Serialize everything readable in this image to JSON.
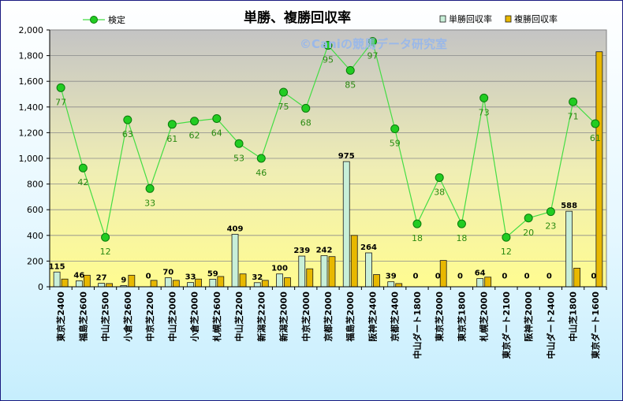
{
  "chart_data": {
    "type": "bar",
    "title": "単勝、複勝回収率",
    "watermark": "©Caniの競馬データ研究室",
    "ylim": [
      0,
      2000
    ],
    "yticks": [
      "0",
      "200",
      "400",
      "600",
      "800",
      "1,000",
      "1,200",
      "1,400",
      "1,600",
      "1,800",
      "2,000"
    ],
    "categories": [
      "東京芝2400",
      "福島芝2600",
      "中山芝2500",
      "小倉芝2600",
      "中京芝2200",
      "中山芝2000",
      "小倉芝2000",
      "札幌芝2600",
      "中山芝2200",
      "新潟芝2200",
      "新潟芝2000",
      "中京芝2000",
      "京都芝2000",
      "福島芝2000",
      "阪神芝2400",
      "京都芝2400",
      "中山ダート1800",
      "東京芝2000",
      "東京芝1800",
      "札幌芝2000",
      "東京ダート2100",
      "阪神芝2000",
      "中山ダート2400",
      "中山芝1800",
      "東京ダート1600"
    ],
    "series": [
      {
        "name": "単勝回収率",
        "color": "#c8efd8",
        "values": [
          115,
          46,
          27,
          9,
          0,
          70,
          33,
          59,
          409,
          32,
          100,
          239,
          242,
          975,
          264,
          39,
          0,
          0,
          0,
          64,
          0,
          0,
          0,
          588,
          0
        ],
        "labels": [
          "115",
          "46",
          "27",
          "9",
          "0",
          "70",
          "33",
          "59",
          "409",
          "32",
          "100",
          "239",
          "242",
          "975",
          "264",
          "39",
          "0",
          "0",
          "0",
          "64",
          "0",
          "0",
          "0",
          "588",
          "0"
        ]
      },
      {
        "name": "複勝回収率",
        "color": "#e8b800",
        "values": [
          60,
          90,
          25,
          90,
          50,
          50,
          60,
          80,
          100,
          50,
          70,
          140,
          235,
          400,
          95,
          25,
          0,
          205,
          0,
          75,
          0,
          0,
          0,
          145,
          1830
        ]
      }
    ],
    "line": {
      "name": "検定",
      "color": "#44dd44",
      "values": [
        1550,
        925,
        385,
        1300,
        765,
        1265,
        1290,
        1310,
        1115,
        1000,
        1515,
        1390,
        1880,
        1685,
        1910,
        1230,
        490,
        850,
        490,
        1470,
        385,
        535,
        585,
        1440,
        1270
      ],
      "labels": [
        "77",
        "42",
        "12",
        "63",
        "33",
        "61",
        "62",
        "64",
        "53",
        "46",
        "75",
        "68",
        "95",
        "85",
        "97",
        "59",
        "18",
        "38",
        "18",
        "73",
        "12",
        "20",
        "23",
        "71",
        "61"
      ]
    },
    "legend": "top"
  }
}
